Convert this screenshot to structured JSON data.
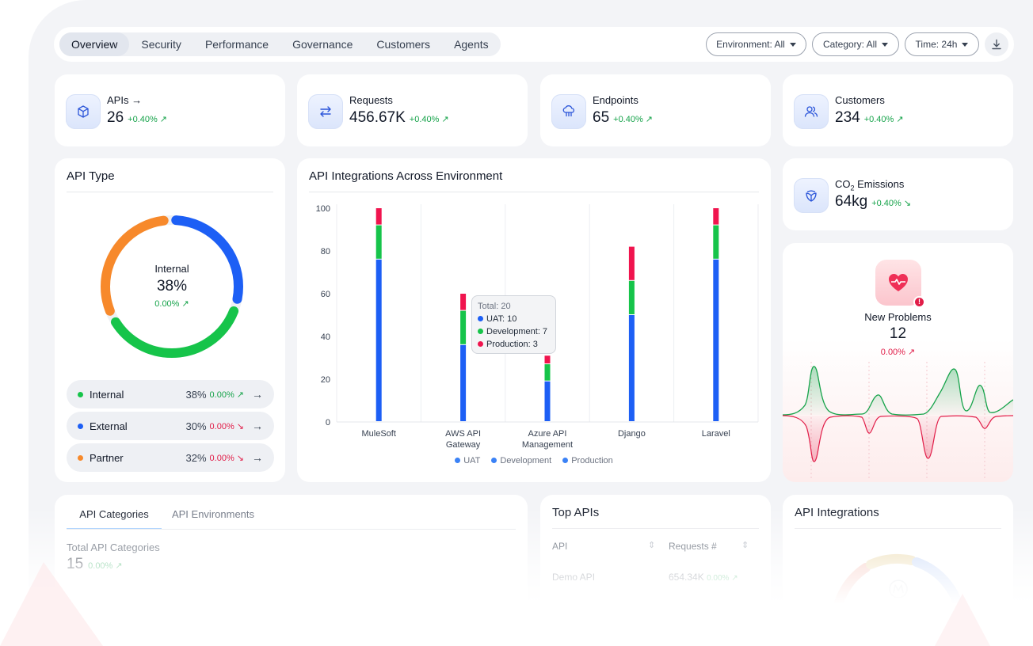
{
  "nav": {
    "tabs": [
      "Overview",
      "Security",
      "Performance",
      "Governance",
      "Customers",
      "Agents"
    ],
    "filters": {
      "environment": "Environment: All",
      "category": "Category: All",
      "time": "Time: 24h"
    },
    "icons": {
      "download": "download-icon",
      "dropdown": "chevron-down-icon"
    }
  },
  "kpis": {
    "apis": {
      "label": "APIs →",
      "value": "26",
      "delta": "+0.40% ↗",
      "icon": "cube-icon"
    },
    "requests": {
      "label": "Requests",
      "value": "456.67K",
      "delta": "+0.40% ↗",
      "icon": "arrows-exchange-icon"
    },
    "endpoints": {
      "label": "Endpoints",
      "value": "65",
      "delta": "+0.40% ↗",
      "icon": "cloud-network-icon"
    },
    "customers": {
      "label": "Customers",
      "value": "234",
      "delta": "+0.40% ↗",
      "icon": "users-icon"
    },
    "co2": {
      "label_prefix": "CO",
      "label_sub": "2",
      "label_suffix": " Emissions",
      "value": "64kg",
      "delta": "+0.40% ↘",
      "icon": "leaf-icon"
    }
  },
  "api_type": {
    "title": "API Type",
    "center_label": "Internal",
    "center_value": "38%",
    "center_delta": "0.00% ↗",
    "rows": [
      {
        "name": "Internal",
        "pct": "38%",
        "change": "0.00% ↗",
        "color": "#16c44a",
        "change_color": "#16a34a"
      },
      {
        "name": "External",
        "pct": "30%",
        "change": "0.00% ↘",
        "color": "#1d5ff5",
        "change_color": "#e11d48"
      },
      {
        "name": "Partner",
        "pct": "32%",
        "change": "0.00% ↘",
        "color": "#f7892b",
        "change_color": "#e11d48"
      }
    ]
  },
  "integrations": {
    "title": "API Integrations Across Environment",
    "legend": [
      "UAT",
      "Development",
      "Production"
    ],
    "tooltip": {
      "total": "Total: 20",
      "uat": "UAT: 10",
      "development": "Development: 7",
      "production": "Production: 3"
    }
  },
  "chart_data": {
    "type": "bar",
    "stacked": true,
    "categories": [
      "MuleSoft",
      "AWS API Gateway",
      "Azure API Management",
      "Django",
      "Laravel"
    ],
    "series": [
      {
        "name": "UAT",
        "color": "#1d5ff5",
        "values": [
          76,
          36,
          19,
          50,
          76
        ]
      },
      {
        "name": "Development",
        "color": "#16c44a",
        "values": [
          16,
          16,
          8,
          16,
          16
        ]
      },
      {
        "name": "Production",
        "color": "#f0144e",
        "values": [
          8,
          8,
          4,
          16,
          8
        ]
      }
    ],
    "yticks": [
      0,
      20,
      40,
      60,
      80,
      100
    ],
    "ylim": [
      0,
      100
    ],
    "grid": "vertical",
    "legend_placement": "bottom"
  },
  "problems": {
    "label": "New Problems",
    "value": "12",
    "delta": "0.00% ↗",
    "icon": "heart-pulse-icon",
    "alert_icon": "alert-icon"
  },
  "categories_card": {
    "tabs": [
      "API Categories",
      "API Environments"
    ],
    "total_label": "Total API Categories",
    "total_value": "15",
    "total_delta": "0.00% ↗"
  },
  "top_apis": {
    "title": "Top APIs",
    "columns": [
      "API",
      "Requests #"
    ],
    "rows": [
      {
        "api": "Demo API",
        "requests": "654.34K",
        "delta": "0.00% ↗"
      }
    ]
  },
  "api_integrations_card": {
    "title": "API Integrations"
  },
  "colors": {
    "uat": "#1d5ff5",
    "development": "#16c44a",
    "production": "#f0144e",
    "partner": "#f7892b",
    "positive": "#16a34a",
    "negative": "#e11d48"
  }
}
